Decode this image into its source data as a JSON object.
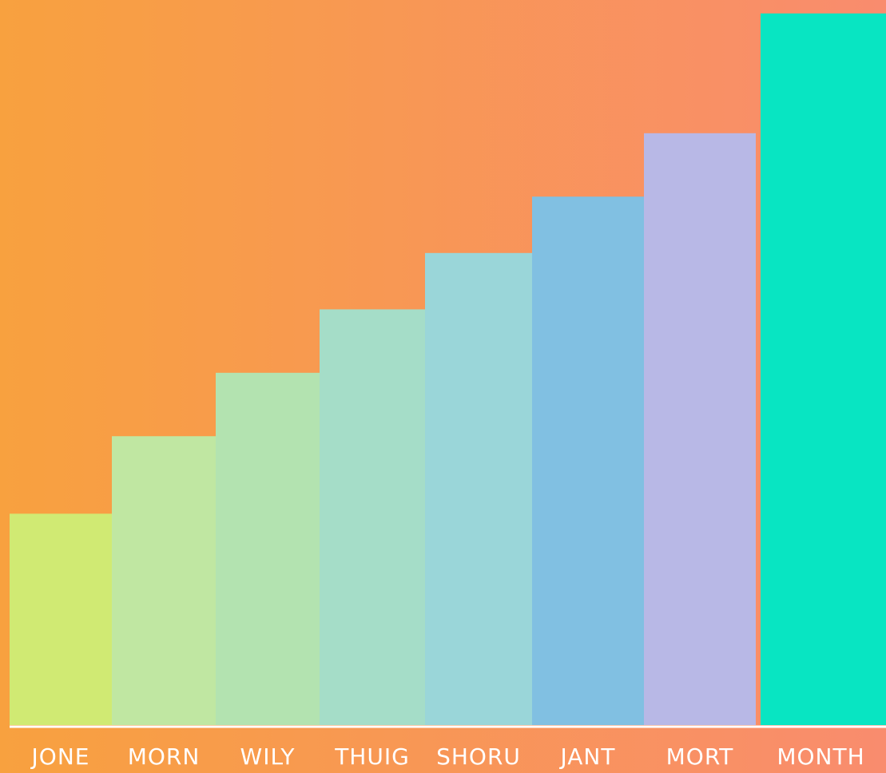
{
  "chart_data": {
    "type": "bar",
    "categories": [
      "JONE",
      "MORN",
      "WILY",
      "THUIG",
      "SHORU",
      "JANT",
      "MORT",
      "MONTH"
    ],
    "values": [
      30,
      41,
      50,
      59,
      67,
      75,
      84,
      101
    ],
    "ylim": [
      0,
      102
    ],
    "grid": false,
    "legend": "none",
    "title": "",
    "xlabel": "",
    "ylabel": ""
  },
  "colors": {
    "background_start": "#f8a13f",
    "background_end": "#f98c6e",
    "bars": [
      "#d0ea73",
      "#c0e7a2",
      "#b3e3b0",
      "#a5ddc8",
      "#9ad6d9",
      "#81c0e2",
      "#b8b8e6",
      "#08e5c2"
    ],
    "axis_line": "#ffffff",
    "label_text": "#ffffff"
  }
}
